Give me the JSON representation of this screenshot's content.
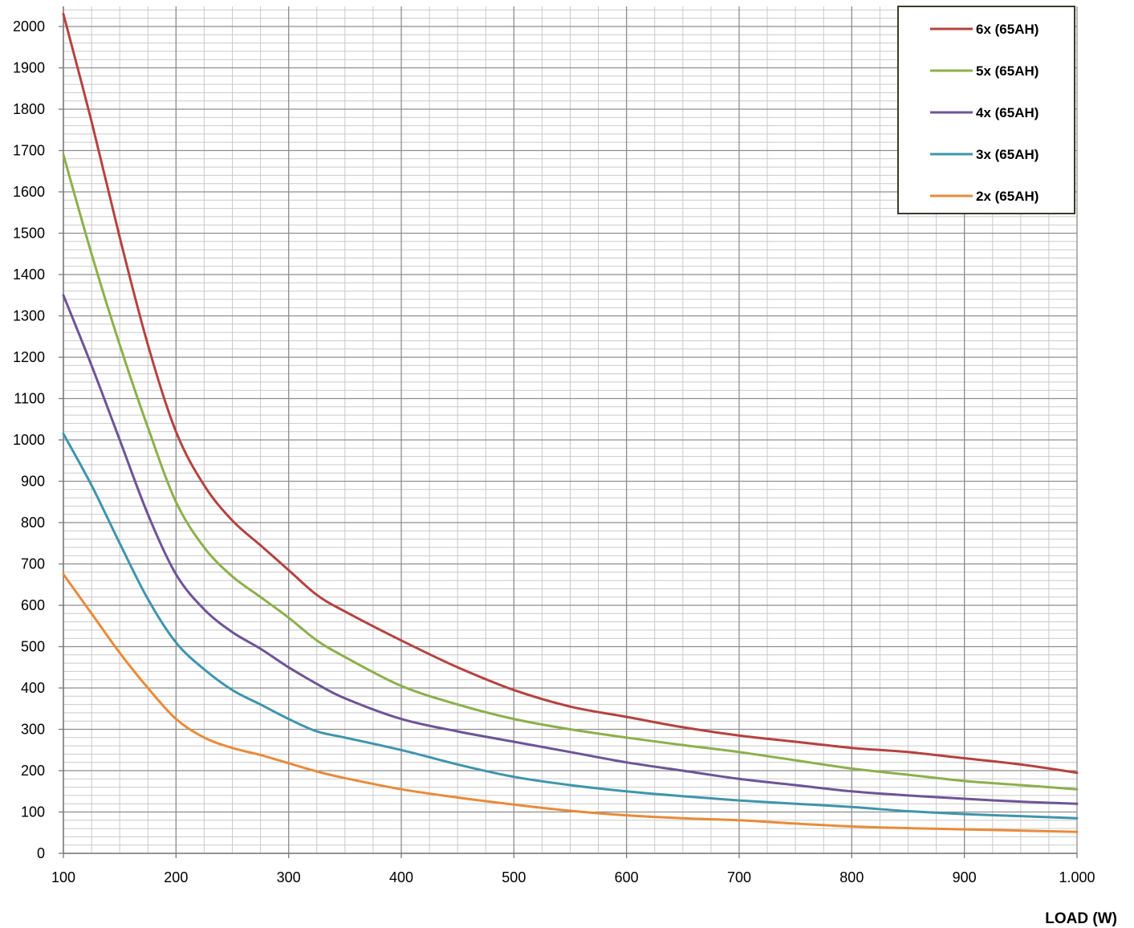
{
  "chart_data": {
    "type": "line",
    "title": "",
    "xlabel": "LOAD (W)",
    "ylabel": "",
    "xlim": [
      100,
      1000
    ],
    "ylim": [
      0,
      2000
    ],
    "x_ticks": [
      100,
      200,
      300,
      400,
      500,
      600,
      700,
      800,
      900,
      1000
    ],
    "x_tick_labels": [
      "100",
      "200",
      "300",
      "400",
      "500",
      "600",
      "700",
      "800",
      "900",
      "1.000"
    ],
    "y_ticks": [
      0,
      100,
      200,
      300,
      400,
      500,
      600,
      700,
      800,
      900,
      1000,
      1100,
      1200,
      1300,
      1400,
      1500,
      1600,
      1700,
      1800,
      1900,
      2000
    ],
    "y_tick_labels": [
      "0",
      "100",
      "200",
      "300",
      "400",
      "500",
      "600",
      "700",
      "800",
      "900",
      "1000",
      "1100",
      "1200",
      "1300",
      "1400",
      "1500",
      "1600",
      "1700",
      "1800",
      "1900",
      "2000"
    ],
    "grid": true,
    "legend_position": "top-right",
    "series": [
      {
        "name": "6x (65AH)",
        "color": "#B5423F",
        "x": [
          100,
          125,
          150,
          175,
          200,
          225,
          250,
          275,
          300,
          325,
          350,
          400,
          450,
          500,
          550,
          600,
          650,
          700,
          750,
          800,
          850,
          900,
          950,
          1000
        ],
        "y": [
          2030,
          1770,
          1490,
          1230,
          1020,
          890,
          805,
          745,
          685,
          625,
          585,
          515,
          450,
          395,
          355,
          330,
          305,
          285,
          270,
          255,
          245,
          230,
          215,
          195
        ]
      },
      {
        "name": "5x (65AH)",
        "color": "#8CB04B",
        "x": [
          100,
          125,
          150,
          175,
          200,
          225,
          250,
          275,
          300,
          325,
          350,
          400,
          450,
          500,
          550,
          600,
          650,
          700,
          750,
          800,
          850,
          900,
          950,
          1000
        ],
        "y": [
          1690,
          1450,
          1230,
          1030,
          850,
          740,
          670,
          620,
          570,
          515,
          475,
          405,
          360,
          325,
          300,
          280,
          262,
          245,
          225,
          205,
          190,
          175,
          165,
          155
        ]
      },
      {
        "name": "4x (65AH)",
        "color": "#6E5496",
        "x": [
          100,
          125,
          150,
          175,
          200,
          225,
          250,
          275,
          300,
          325,
          350,
          400,
          450,
          500,
          550,
          600,
          650,
          700,
          750,
          800,
          850,
          900,
          950,
          1000
        ],
        "y": [
          1350,
          1180,
          1000,
          820,
          675,
          590,
          535,
          495,
          450,
          410,
          375,
          325,
          295,
          270,
          245,
          220,
          200,
          180,
          165,
          150,
          140,
          132,
          125,
          120
        ]
      },
      {
        "name": "3x (65AH)",
        "color": "#3E95AC",
        "x": [
          100,
          125,
          150,
          175,
          200,
          225,
          250,
          275,
          300,
          325,
          350,
          400,
          450,
          500,
          550,
          600,
          650,
          700,
          750,
          800,
          850,
          900,
          950,
          1000
        ],
        "y": [
          1015,
          890,
          750,
          615,
          510,
          445,
          395,
          360,
          325,
          295,
          280,
          250,
          215,
          185,
          165,
          150,
          138,
          128,
          120,
          112,
          102,
          95,
          90,
          85
        ]
      },
      {
        "name": "2x (65AH)",
        "color": "#E88B3A",
        "x": [
          100,
          125,
          150,
          175,
          200,
          225,
          250,
          275,
          300,
          325,
          350,
          400,
          450,
          500,
          550,
          600,
          650,
          700,
          750,
          800,
          850,
          900,
          950,
          1000
        ],
        "y": [
          675,
          580,
          485,
          400,
          325,
          280,
          255,
          238,
          218,
          198,
          182,
          155,
          135,
          118,
          103,
          92,
          85,
          80,
          72,
          65,
          61,
          58,
          55,
          52
        ]
      }
    ]
  }
}
